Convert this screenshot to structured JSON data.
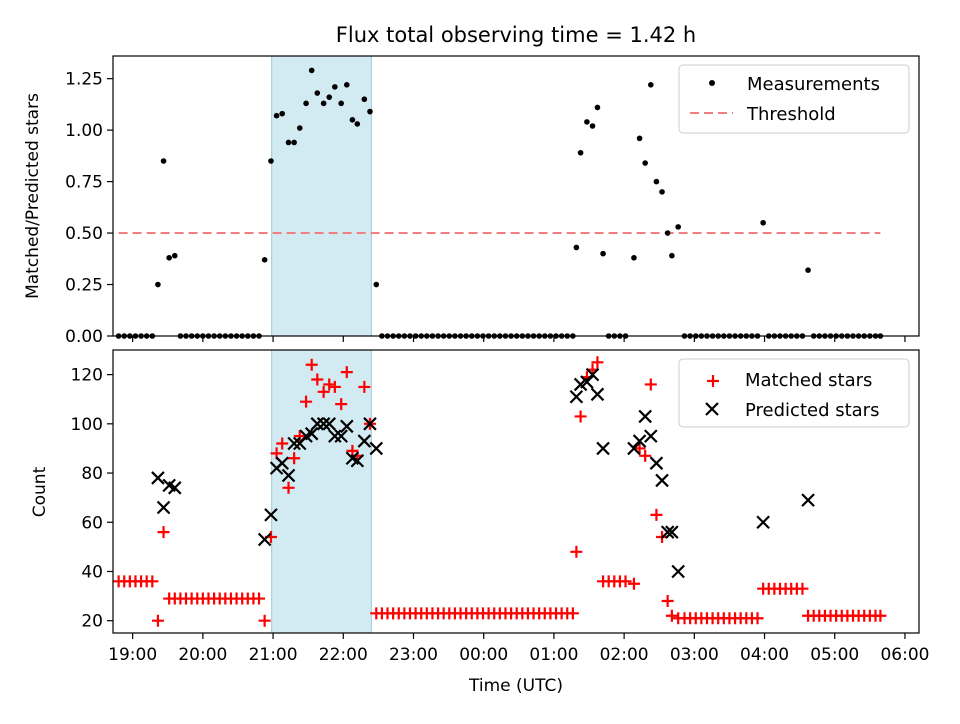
{
  "title": "Flux total observing time = 1.42 h",
  "x_axis": {
    "label": "Time (UTC)",
    "ticks": [
      {
        "h": 19,
        "label": "19:00"
      },
      {
        "h": 20,
        "label": "20:00"
      },
      {
        "h": 21,
        "label": "21:00"
      },
      {
        "h": 22,
        "label": "22:00"
      },
      {
        "h": 23,
        "label": "23:00"
      },
      {
        "h": 24,
        "label": "00:00"
      },
      {
        "h": 25,
        "label": "01:00"
      },
      {
        "h": 26,
        "label": "02:00"
      },
      {
        "h": 27,
        "label": "03:00"
      },
      {
        "h": 28,
        "label": "04:00"
      },
      {
        "h": 29,
        "label": "05:00"
      },
      {
        "h": 30,
        "label": "06:00"
      }
    ],
    "range": [
      18.72,
      30.2
    ],
    "note": "hours after 00:00 of the first night; 24 = 00:00 next day"
  },
  "highlight_span": {
    "start": 20.98,
    "end": 22.4
  },
  "colors": {
    "measurements": "#000000",
    "threshold": "#f08080",
    "matched": "#ff0000",
    "predicted": "#000000",
    "span": "#add8e6"
  },
  "chart_data": [
    {
      "type": "scatter",
      "ylabel": "Matched/Predicted stars",
      "ylim": [
        0,
        1.36
      ],
      "yticks": [
        {
          "v": 0,
          "label": "0.00"
        },
        {
          "v": 0.25,
          "label": "0.25"
        },
        {
          "v": 0.5,
          "label": "0.50"
        },
        {
          "v": 0.75,
          "label": "0.75"
        },
        {
          "v": 1.0,
          "label": "1.00"
        },
        {
          "v": 1.25,
          "label": "1.25"
        }
      ],
      "legend": {
        "position": "top-right",
        "entries": [
          {
            "label": "Measurements",
            "marker": "dot"
          },
          {
            "label": "Threshold",
            "marker": "dashed-line"
          }
        ]
      },
      "threshold": {
        "value": 0.5,
        "x_start": 18.8,
        "x_end": 29.65
      },
      "measurements": [
        [
          18.8,
          0
        ],
        [
          18.88,
          0
        ],
        [
          18.96,
          0
        ],
        [
          19.04,
          0
        ],
        [
          19.12,
          0
        ],
        [
          19.2,
          0
        ],
        [
          19.28,
          0
        ],
        [
          19.36,
          0.25
        ],
        [
          19.44,
          0.85
        ],
        [
          19.52,
          0.38
        ],
        [
          19.6,
          0.39
        ],
        [
          19.68,
          0
        ],
        [
          19.76,
          0
        ],
        [
          19.84,
          0
        ],
        [
          19.92,
          0
        ],
        [
          20.0,
          0
        ],
        [
          20.08,
          0
        ],
        [
          20.16,
          0
        ],
        [
          20.24,
          0
        ],
        [
          20.32,
          0
        ],
        [
          20.4,
          0
        ],
        [
          20.48,
          0
        ],
        [
          20.56,
          0
        ],
        [
          20.64,
          0
        ],
        [
          20.72,
          0
        ],
        [
          20.8,
          0
        ],
        [
          20.88,
          0.37
        ],
        [
          20.97,
          0.85
        ],
        [
          21.05,
          1.07
        ],
        [
          21.13,
          1.08
        ],
        [
          21.22,
          0.94
        ],
        [
          21.3,
          0.94
        ],
        [
          21.38,
          1.01
        ],
        [
          21.47,
          1.13
        ],
        [
          21.55,
          1.29
        ],
        [
          21.63,
          1.18
        ],
        [
          21.72,
          1.13
        ],
        [
          21.8,
          1.16
        ],
        [
          21.88,
          1.21
        ],
        [
          21.97,
          1.13
        ],
        [
          22.05,
          1.22
        ],
        [
          22.13,
          1.05
        ],
        [
          22.2,
          1.03
        ],
        [
          22.3,
          1.15
        ],
        [
          22.38,
          1.09
        ],
        [
          22.47,
          0.25
        ],
        [
          22.55,
          0
        ],
        [
          22.63,
          0
        ],
        [
          22.71,
          0
        ],
        [
          22.79,
          0
        ],
        [
          22.87,
          0
        ],
        [
          22.95,
          0
        ],
        [
          23.03,
          0
        ],
        [
          23.11,
          0
        ],
        [
          23.19,
          0
        ],
        [
          23.27,
          0
        ],
        [
          23.35,
          0
        ],
        [
          23.43,
          0
        ],
        [
          23.51,
          0
        ],
        [
          23.59,
          0
        ],
        [
          23.67,
          0
        ],
        [
          23.75,
          0
        ],
        [
          23.83,
          0
        ],
        [
          23.91,
          0
        ],
        [
          23.99,
          0
        ],
        [
          24.07,
          0
        ],
        [
          24.15,
          0
        ],
        [
          24.23,
          0
        ],
        [
          24.31,
          0
        ],
        [
          24.39,
          0
        ],
        [
          24.47,
          0
        ],
        [
          24.55,
          0
        ],
        [
          24.63,
          0
        ],
        [
          24.71,
          0
        ],
        [
          24.79,
          0
        ],
        [
          24.87,
          0
        ],
        [
          24.95,
          0
        ],
        [
          25.03,
          0
        ],
        [
          25.11,
          0
        ],
        [
          25.19,
          0
        ],
        [
          25.27,
          0
        ],
        [
          25.32,
          0.43
        ],
        [
          25.38,
          0.89
        ],
        [
          25.47,
          1.04
        ],
        [
          25.55,
          1.02
        ],
        [
          25.62,
          1.11
        ],
        [
          25.7,
          0.4
        ],
        [
          25.78,
          0
        ],
        [
          25.86,
          0
        ],
        [
          25.94,
          0
        ],
        [
          26.02,
          0
        ],
        [
          26.14,
          0.38
        ],
        [
          26.22,
          0.96
        ],
        [
          26.3,
          0.84
        ],
        [
          26.38,
          1.22
        ],
        [
          26.46,
          0.75
        ],
        [
          26.54,
          0.7
        ],
        [
          26.62,
          0.5
        ],
        [
          26.68,
          0.39
        ],
        [
          26.77,
          0.53
        ],
        [
          26.86,
          0
        ],
        [
          26.94,
          0
        ],
        [
          27.02,
          0
        ],
        [
          27.1,
          0
        ],
        [
          27.18,
          0
        ],
        [
          27.26,
          0
        ],
        [
          27.34,
          0
        ],
        [
          27.42,
          0
        ],
        [
          27.5,
          0
        ],
        [
          27.58,
          0
        ],
        [
          27.66,
          0
        ],
        [
          27.74,
          0
        ],
        [
          27.82,
          0
        ],
        [
          27.9,
          0
        ],
        [
          27.98,
          0.55
        ],
        [
          28.06,
          0
        ],
        [
          28.14,
          0
        ],
        [
          28.22,
          0
        ],
        [
          28.3,
          0
        ],
        [
          28.38,
          0
        ],
        [
          28.46,
          0
        ],
        [
          28.54,
          0
        ],
        [
          28.62,
          0.32
        ],
        [
          28.7,
          0
        ],
        [
          28.78,
          0
        ],
        [
          28.86,
          0
        ],
        [
          28.94,
          0
        ],
        [
          29.02,
          0
        ],
        [
          29.1,
          0
        ],
        [
          29.18,
          0
        ],
        [
          29.26,
          0
        ],
        [
          29.34,
          0
        ],
        [
          29.42,
          0
        ],
        [
          29.5,
          0
        ],
        [
          29.58,
          0
        ],
        [
          29.65,
          0
        ]
      ]
    },
    {
      "type": "scatter",
      "ylabel": "Count",
      "ylim": [
        15,
        130
      ],
      "yticks": [
        {
          "v": 20,
          "label": "20"
        },
        {
          "v": 40,
          "label": "40"
        },
        {
          "v": 60,
          "label": "60"
        },
        {
          "v": 80,
          "label": "80"
        },
        {
          "v": 100,
          "label": "100"
        },
        {
          "v": 120,
          "label": "120"
        }
      ],
      "legend": {
        "position": "top-right",
        "entries": [
          {
            "label": "Matched stars",
            "marker": "plus"
          },
          {
            "label": "Predicted stars",
            "marker": "x"
          }
        ]
      },
      "matched": [
        [
          18.8,
          36
        ],
        [
          18.88,
          36
        ],
        [
          18.96,
          36
        ],
        [
          19.04,
          36
        ],
        [
          19.12,
          36
        ],
        [
          19.2,
          36
        ],
        [
          19.28,
          36
        ],
        [
          19.36,
          20
        ],
        [
          19.44,
          56
        ],
        [
          19.52,
          29
        ],
        [
          19.6,
          29
        ],
        [
          19.68,
          29
        ],
        [
          19.76,
          29
        ],
        [
          19.84,
          29
        ],
        [
          19.92,
          29
        ],
        [
          20.0,
          29
        ],
        [
          20.08,
          29
        ],
        [
          20.16,
          29
        ],
        [
          20.24,
          29
        ],
        [
          20.32,
          29
        ],
        [
          20.4,
          29
        ],
        [
          20.48,
          29
        ],
        [
          20.56,
          29
        ],
        [
          20.64,
          29
        ],
        [
          20.72,
          29
        ],
        [
          20.8,
          29
        ],
        [
          20.88,
          20
        ],
        [
          20.97,
          54
        ],
        [
          21.05,
          88
        ],
        [
          21.13,
          92
        ],
        [
          21.22,
          74
        ],
        [
          21.3,
          86
        ],
        [
          21.38,
          95
        ],
        [
          21.47,
          109
        ],
        [
          21.55,
          124
        ],
        [
          21.63,
          118
        ],
        [
          21.72,
          113
        ],
        [
          21.8,
          116
        ],
        [
          21.88,
          115
        ],
        [
          21.97,
          108
        ],
        [
          22.05,
          121
        ],
        [
          22.13,
          89
        ],
        [
          22.2,
          87
        ],
        [
          22.3,
          115
        ],
        [
          22.38,
          100
        ],
        [
          22.47,
          23
        ],
        [
          22.55,
          23
        ],
        [
          22.63,
          23
        ],
        [
          22.71,
          23
        ],
        [
          22.79,
          23
        ],
        [
          22.87,
          23
        ],
        [
          22.95,
          23
        ],
        [
          23.03,
          23
        ],
        [
          23.11,
          23
        ],
        [
          23.19,
          23
        ],
        [
          23.27,
          23
        ],
        [
          23.35,
          23
        ],
        [
          23.43,
          23
        ],
        [
          23.51,
          23
        ],
        [
          23.59,
          23
        ],
        [
          23.67,
          23
        ],
        [
          23.75,
          23
        ],
        [
          23.83,
          23
        ],
        [
          23.91,
          23
        ],
        [
          23.99,
          23
        ],
        [
          24.07,
          23
        ],
        [
          24.15,
          23
        ],
        [
          24.23,
          23
        ],
        [
          24.31,
          23
        ],
        [
          24.39,
          23
        ],
        [
          24.47,
          23
        ],
        [
          24.55,
          23
        ],
        [
          24.63,
          23
        ],
        [
          24.71,
          23
        ],
        [
          24.79,
          23
        ],
        [
          24.87,
          23
        ],
        [
          24.95,
          23
        ],
        [
          25.03,
          23
        ],
        [
          25.11,
          23
        ],
        [
          25.19,
          23
        ],
        [
          25.27,
          23
        ],
        [
          25.32,
          48
        ],
        [
          25.38,
          103
        ],
        [
          25.47,
          119
        ],
        [
          25.55,
          122
        ],
        [
          25.62,
          125
        ],
        [
          25.7,
          36
        ],
        [
          25.78,
          36
        ],
        [
          25.86,
          36
        ],
        [
          25.94,
          36
        ],
        [
          26.02,
          36
        ],
        [
          26.14,
          35
        ],
        [
          26.22,
          90
        ],
        [
          26.3,
          87
        ],
        [
          26.38,
          116
        ],
        [
          26.46,
          63
        ],
        [
          26.54,
          54
        ],
        [
          26.62,
          28
        ],
        [
          26.68,
          22
        ],
        [
          26.77,
          21
        ],
        [
          26.86,
          21
        ],
        [
          26.94,
          21
        ],
        [
          27.02,
          21
        ],
        [
          27.1,
          21
        ],
        [
          27.18,
          21
        ],
        [
          27.26,
          21
        ],
        [
          27.34,
          21
        ],
        [
          27.42,
          21
        ],
        [
          27.5,
          21
        ],
        [
          27.58,
          21
        ],
        [
          27.66,
          21
        ],
        [
          27.74,
          21
        ],
        [
          27.82,
          21
        ],
        [
          27.9,
          21
        ],
        [
          27.98,
          33
        ],
        [
          28.06,
          33
        ],
        [
          28.14,
          33
        ],
        [
          28.22,
          33
        ],
        [
          28.3,
          33
        ],
        [
          28.38,
          33
        ],
        [
          28.46,
          33
        ],
        [
          28.54,
          33
        ],
        [
          28.62,
          22
        ],
        [
          28.7,
          22
        ],
        [
          28.78,
          22
        ],
        [
          28.86,
          22
        ],
        [
          28.94,
          22
        ],
        [
          29.02,
          22
        ],
        [
          29.1,
          22
        ],
        [
          29.18,
          22
        ],
        [
          29.26,
          22
        ],
        [
          29.34,
          22
        ],
        [
          29.42,
          22
        ],
        [
          29.5,
          22
        ],
        [
          29.58,
          22
        ],
        [
          29.65,
          22
        ]
      ],
      "predicted": [
        [
          19.36,
          78
        ],
        [
          19.44,
          66
        ],
        [
          19.52,
          75
        ],
        [
          19.6,
          74
        ],
        [
          20.88,
          53
        ],
        [
          20.97,
          63
        ],
        [
          21.05,
          82
        ],
        [
          21.13,
          84
        ],
        [
          21.22,
          79
        ],
        [
          21.3,
          92
        ],
        [
          21.38,
          92
        ],
        [
          21.47,
          95
        ],
        [
          21.55,
          96
        ],
        [
          21.63,
          100
        ],
        [
          21.72,
          100
        ],
        [
          21.8,
          100
        ],
        [
          21.88,
          95
        ],
        [
          21.97,
          95
        ],
        [
          22.05,
          99
        ],
        [
          22.13,
          86
        ],
        [
          22.2,
          85
        ],
        [
          22.3,
          93
        ],
        [
          22.38,
          100
        ],
        [
          22.47,
          90
        ],
        [
          25.32,
          111
        ],
        [
          25.38,
          116
        ],
        [
          25.47,
          117
        ],
        [
          25.55,
          120
        ],
        [
          25.62,
          112
        ],
        [
          25.7,
          90
        ],
        [
          26.14,
          90
        ],
        [
          26.22,
          93
        ],
        [
          26.3,
          103
        ],
        [
          26.38,
          95
        ],
        [
          26.46,
          84
        ],
        [
          26.54,
          77
        ],
        [
          26.62,
          56
        ],
        [
          26.68,
          56
        ],
        [
          26.77,
          40
        ],
        [
          27.98,
          60
        ],
        [
          28.62,
          69
        ]
      ]
    }
  ]
}
